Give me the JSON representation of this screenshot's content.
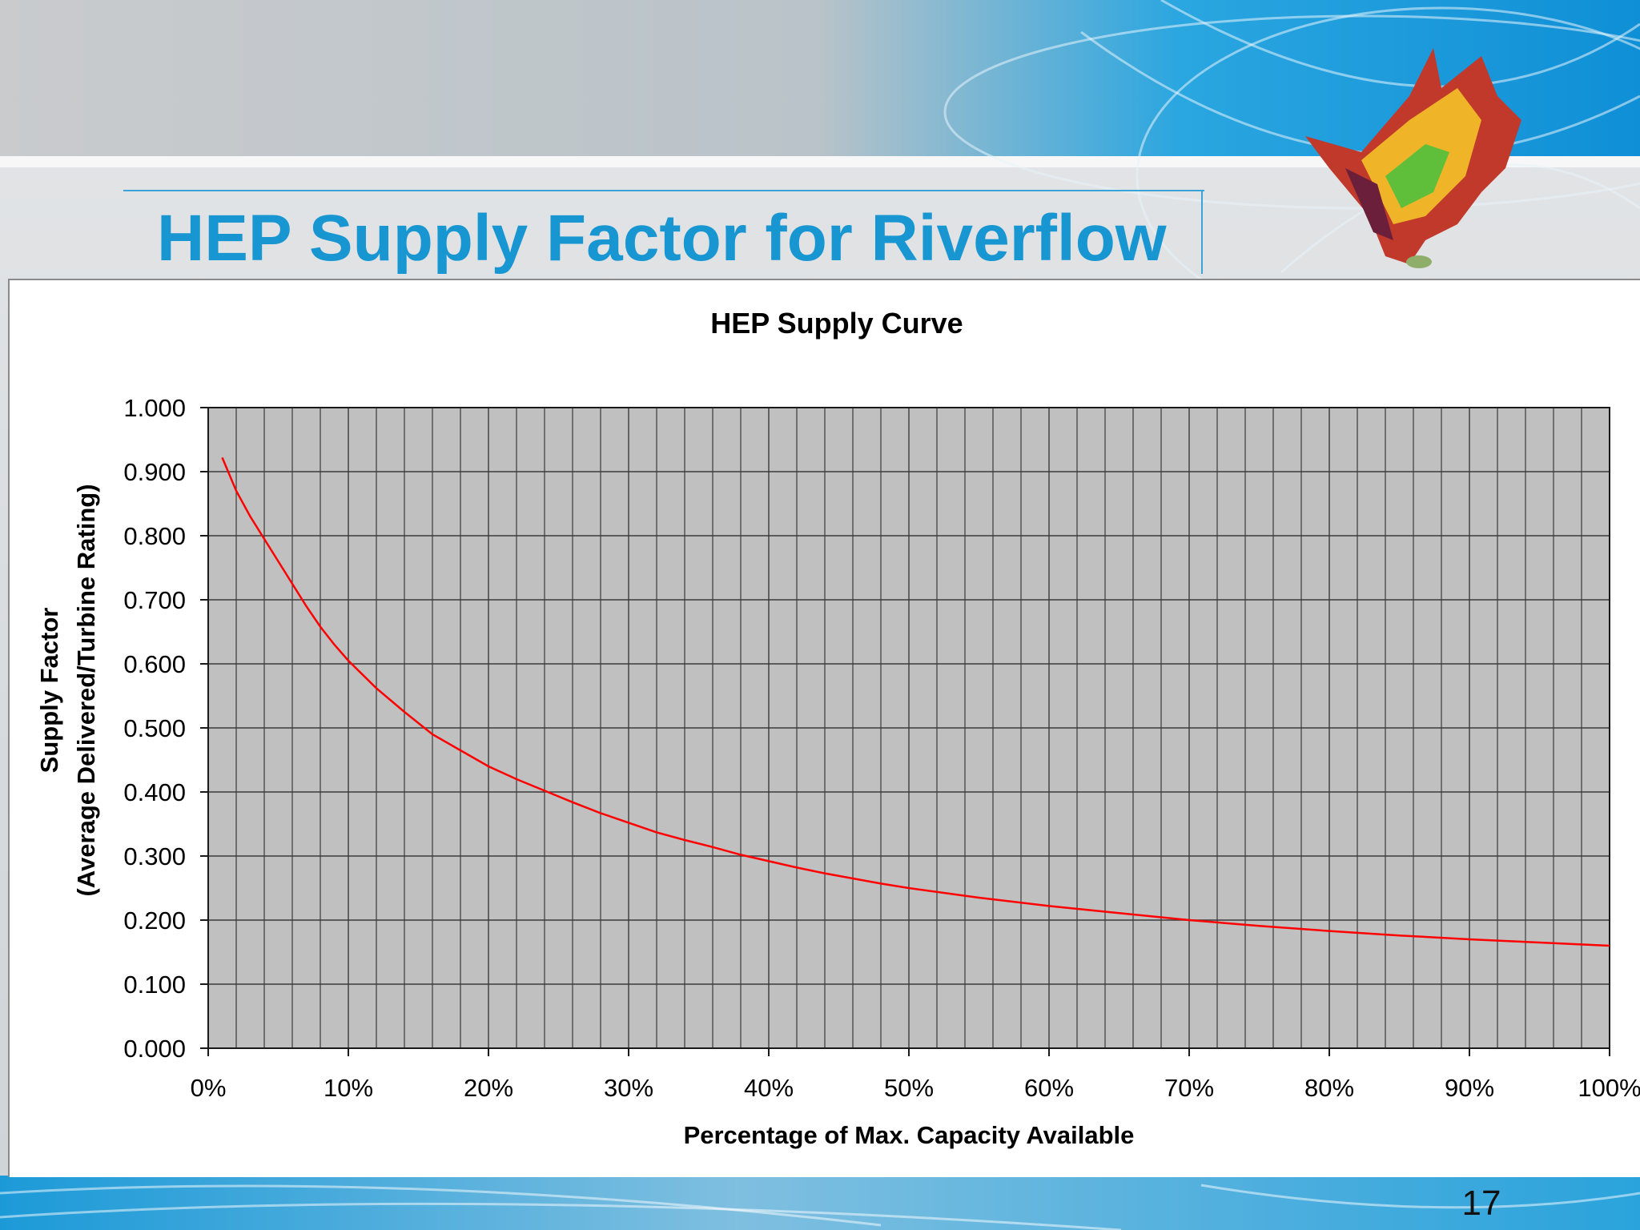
{
  "slide": {
    "title": "HEP Supply Factor for Riverflow",
    "page_number": "17",
    "colors": {
      "title": "#1896d2",
      "plot_bg": "#c0c0c0",
      "grid": "#3a3a3a",
      "line": "#ff0000"
    }
  },
  "chart_data": {
    "type": "line",
    "title": "HEP Supply Curve",
    "xlabel": "Percentage of Max. Capacity Available",
    "ylabel": [
      "Supply Factor",
      "(Average Delivered/Turbine Rating)"
    ],
    "xlim": [
      0,
      100
    ],
    "ylim": [
      0,
      1
    ],
    "x_ticks": [
      0,
      10,
      20,
      30,
      40,
      50,
      60,
      70,
      80,
      90,
      100
    ],
    "x_tick_labels": [
      "0%",
      "10%",
      "20%",
      "30%",
      "40%",
      "50%",
      "60%",
      "70%",
      "80%",
      "90%",
      "100%"
    ],
    "y_ticks": [
      0,
      0.1,
      0.2,
      0.3,
      0.4,
      0.5,
      0.6,
      0.7,
      0.8,
      0.9,
      1.0
    ],
    "y_tick_labels": [
      "0.000",
      "0.100",
      "0.200",
      "0.300",
      "0.400",
      "0.500",
      "0.600",
      "0.700",
      "0.800",
      "0.900",
      "1.000"
    ],
    "minor_x_step": 2,
    "grid": true,
    "legend": "none",
    "series": [
      {
        "name": "HEP Supply Curve",
        "color": "#ff0000",
        "x": [
          1,
          2,
          3,
          4,
          5,
          6,
          7,
          8,
          9,
          10,
          12,
          14,
          16,
          18,
          20,
          22,
          24,
          26,
          28,
          30,
          32,
          34,
          36,
          38,
          40,
          42,
          44,
          46,
          48,
          50,
          55,
          60,
          65,
          70,
          75,
          80,
          85,
          90,
          95,
          100
        ],
        "y": [
          0.922,
          0.87,
          0.83,
          0.795,
          0.76,
          0.725,
          0.69,
          0.658,
          0.63,
          0.605,
          0.562,
          0.525,
          0.49,
          0.465,
          0.44,
          0.42,
          0.402,
          0.384,
          0.367,
          0.352,
          0.337,
          0.325,
          0.314,
          0.302,
          0.292,
          0.282,
          0.273,
          0.265,
          0.257,
          0.25,
          0.235,
          0.222,
          0.211,
          0.2,
          0.191,
          0.183,
          0.176,
          0.17,
          0.165,
          0.16
        ]
      }
    ]
  }
}
